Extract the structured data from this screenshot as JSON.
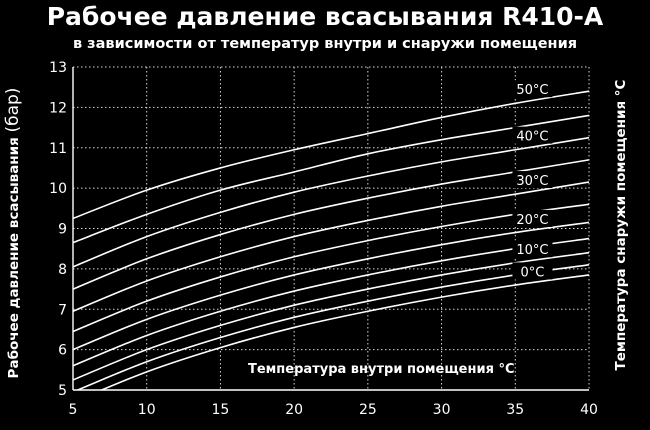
{
  "chart_data": {
    "type": "line",
    "title": "Рабочее давление всасывания R410-A",
    "subtitle": "в зависимости от температур внутри и снаружи помещения",
    "ylabel": "Рабочее давление всасывания",
    "ylabel_unit": "(бар)",
    "y2label": "Температура снаружи помещения  °C",
    "xlabel": "Температура внутри помещения   °C",
    "xlim": [
      5,
      40
    ],
    "ylim": [
      5,
      13
    ],
    "x_ticks": [
      "5",
      "10",
      "15",
      "20",
      "25",
      "30",
      "35",
      "40"
    ],
    "y_ticks": [
      "5",
      "6",
      "7",
      "8",
      "9",
      "10",
      "11",
      "12",
      "13"
    ],
    "grid": true,
    "x": [
      5,
      10,
      15,
      20,
      25,
      30,
      35,
      40
    ],
    "series": [
      {
        "name": "50°C",
        "values": [
          9.25,
          9.95,
          10.5,
          10.95,
          11.35,
          11.75,
          12.1,
          12.4
        ]
      },
      {
        "values": [
          8.65,
          9.35,
          9.95,
          10.4,
          10.85,
          11.2,
          11.5,
          11.8
        ]
      },
      {
        "name": "40°C",
        "values": [
          8.05,
          8.8,
          9.4,
          9.9,
          10.3,
          10.65,
          10.95,
          11.25
        ]
      },
      {
        "values": [
          7.5,
          8.25,
          8.85,
          9.35,
          9.75,
          10.1,
          10.4,
          10.7
        ]
      },
      {
        "name": "30°C",
        "values": [
          6.95,
          7.7,
          8.3,
          8.8,
          9.2,
          9.55,
          9.85,
          10.15
        ]
      },
      {
        "values": [
          6.45,
          7.2,
          7.8,
          8.3,
          8.7,
          9.05,
          9.35,
          9.6
        ]
      },
      {
        "name": "20°C",
        "values": [
          6.0,
          6.75,
          7.35,
          7.85,
          8.25,
          8.6,
          8.9,
          9.15
        ]
      },
      {
        "values": [
          5.6,
          6.35,
          6.95,
          7.45,
          7.85,
          8.2,
          8.5,
          8.75
        ]
      },
      {
        "name": "10°C",
        "values": [
          5.25,
          6.0,
          6.6,
          7.1,
          7.5,
          7.85,
          8.15,
          8.4
        ]
      },
      {
        "values": [
          4.95,
          5.7,
          6.3,
          6.8,
          7.2,
          7.55,
          7.85,
          8.1
        ]
      },
      {
        "name": "0°C",
        "values": [
          4.7,
          5.45,
          6.05,
          6.55,
          6.95,
          7.3,
          7.6,
          7.85
        ]
      }
    ]
  }
}
